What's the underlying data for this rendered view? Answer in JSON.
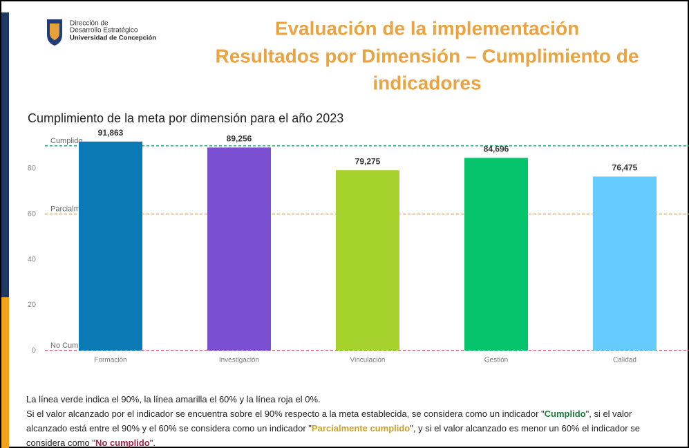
{
  "header": {
    "org_lines": [
      "Dirección de",
      "Desarrollo Estratégico",
      "Universidad de Concepción"
    ],
    "title_lines": [
      "Evaluación de la implementación",
      "Resultados por Dimensión – Cumplimiento de",
      "indicadores"
    ]
  },
  "chart_data": {
    "type": "bar",
    "title": "Cumplimiento de la meta por dimensión para el año 2023",
    "categories": [
      "Formación",
      "Investigación",
      "Vinculación",
      "Gestión",
      "Calidad"
    ],
    "values": [
      91.863,
      89.256,
      79.275,
      84.696,
      76.475
    ],
    "value_labels": [
      "91,863",
      "89,256",
      "79,275",
      "84,696",
      "76,475"
    ],
    "colors": [
      "#0a7ab5",
      "#7a4fd1",
      "#a5d22c",
      "#05c46c",
      "#66ccff"
    ],
    "ylim": [
      0,
      100
    ],
    "yticks": [
      0,
      20,
      40,
      60,
      80
    ],
    "reference_lines": [
      {
        "value": 90,
        "label": "Cumplido",
        "color": "#23b36b"
      },
      {
        "value": 60,
        "label": "Parcialmente cumplido",
        "color": "#d9b24a"
      },
      {
        "value": 0,
        "label": "No Cumplido",
        "color": "#d9556f"
      }
    ]
  },
  "footnote": {
    "line1": "La línea verde indica el 90%, la línea amarilla el 60%  y la línea roja el 0%.",
    "parts": [
      "Si el valor alcanzado por el indicador se encuentra sobre el 90% respecto a la meta establecida, se considera como un indicador \"",
      "Cumplido",
      "\", si el valor alcanzado está entre el 90% y el 60% se considera como un indicador \"",
      "Parcialmente cumplido",
      "\", y si el valor alcanzado es menor un 60% el indicador se considera como \"",
      "No cumplido",
      "\"."
    ]
  }
}
